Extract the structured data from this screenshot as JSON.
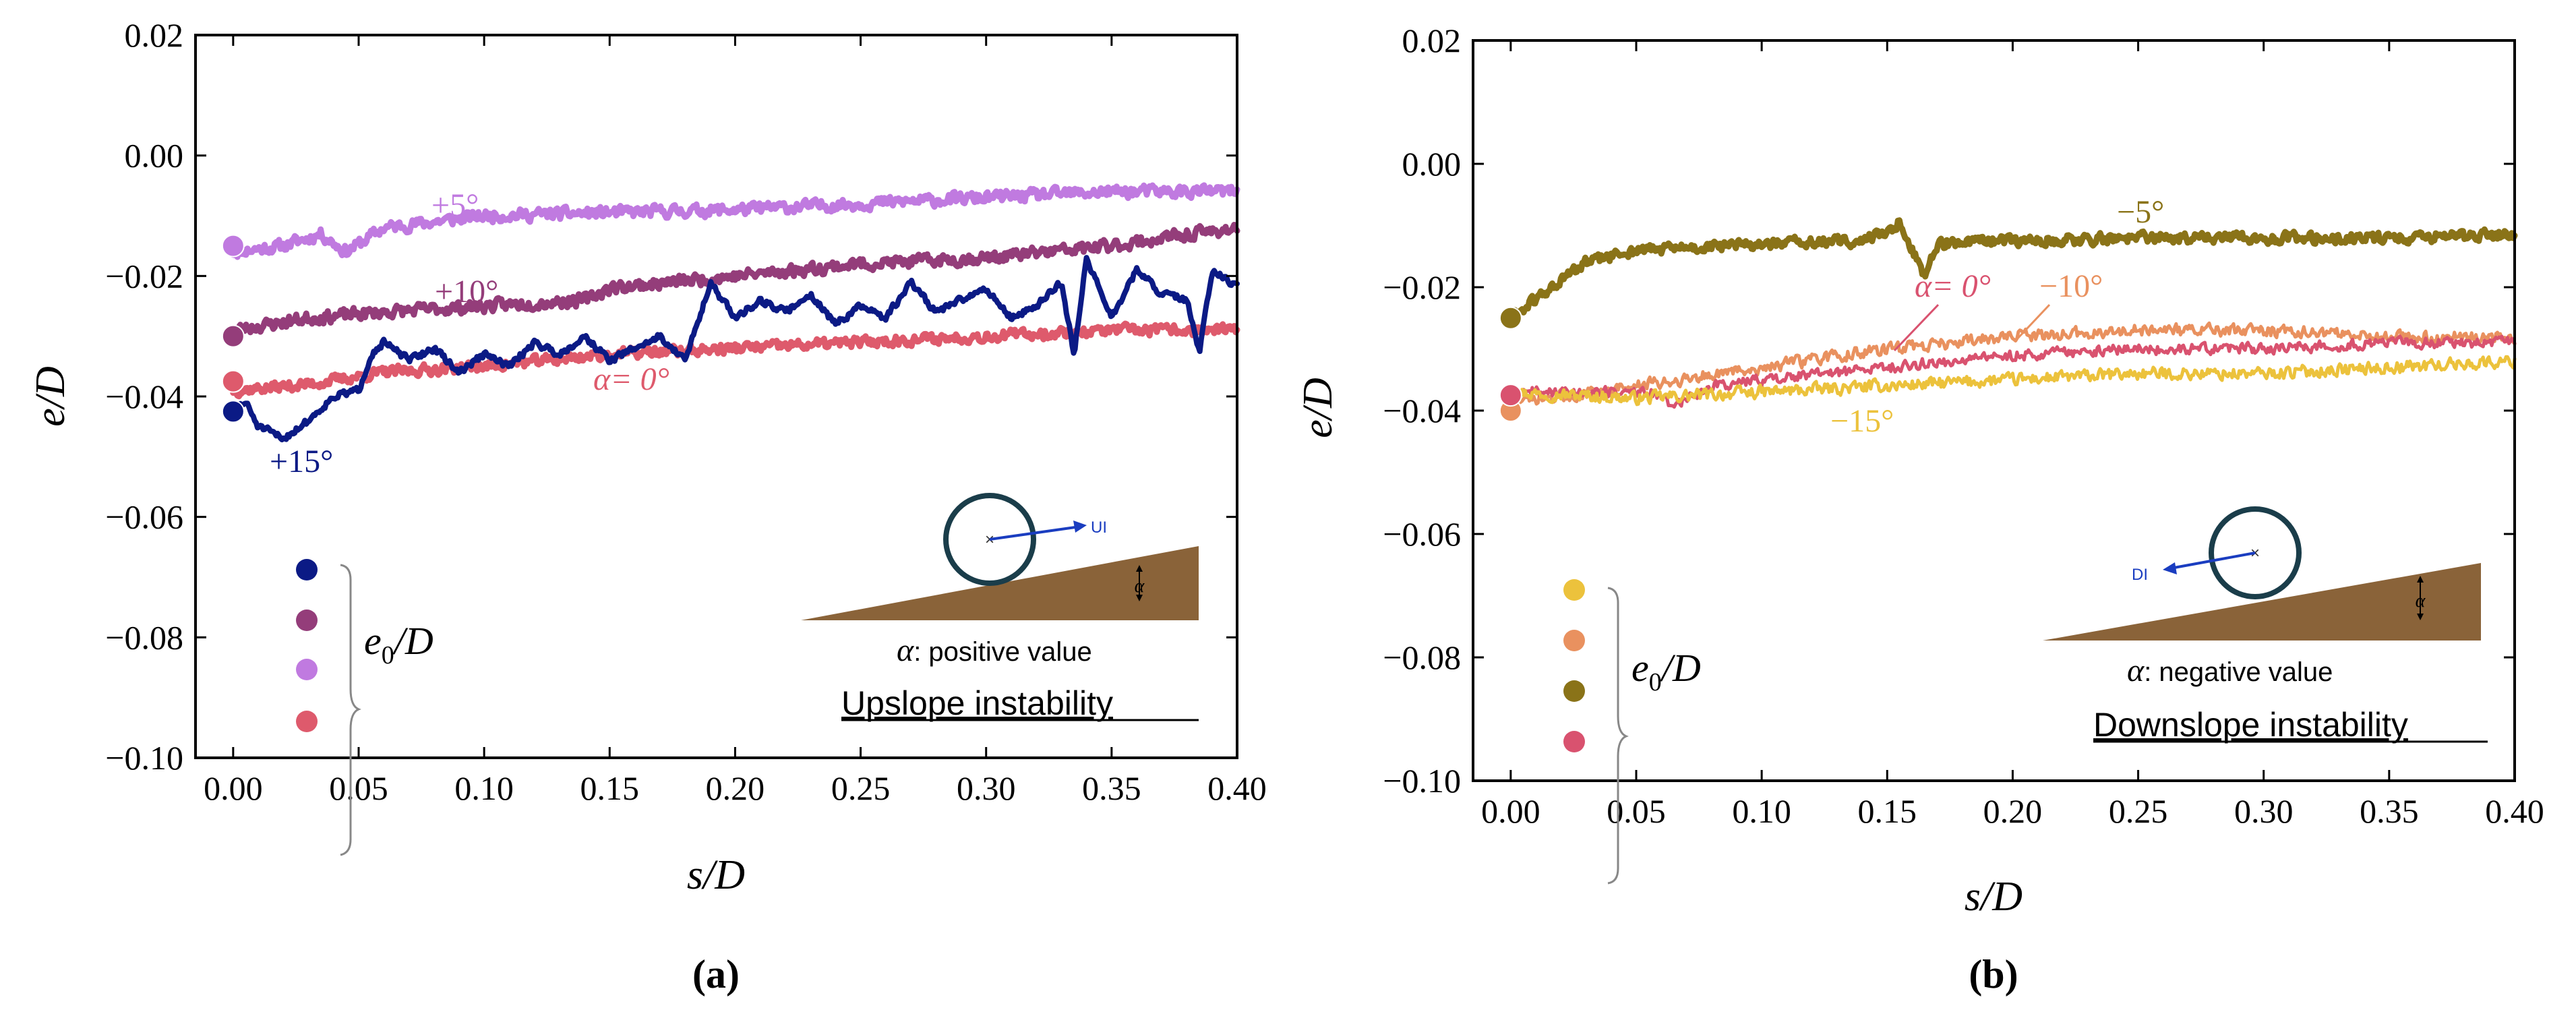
{
  "chart_data": [
    {
      "type": "line",
      "panel_label": "(a)",
      "xlabel": "s/D",
      "ylabel": "e/D",
      "xlim": [
        -0.015,
        0.4
      ],
      "ylim": [
        -0.1,
        0.02
      ],
      "xticks": [
        0.0,
        0.05,
        0.1,
        0.15,
        0.2,
        0.25,
        0.3,
        0.35,
        0.4
      ],
      "xtick_labels": [
        "0.00",
        "0.05",
        "0.10",
        "0.15",
        "0.20",
        "0.25",
        "0.30",
        "0.35",
        "0.40"
      ],
      "yticks": [
        0.02,
        0.0,
        -0.02,
        -0.04,
        -0.06,
        -0.08,
        -0.1
      ],
      "ytick_labels": [
        "0.02",
        "0.00",
        "−0.02",
        "−0.04",
        "−0.06",
        "−0.08",
        "−0.10"
      ],
      "series": [
        {
          "name": "+5°",
          "label": "+5°",
          "color": "#c07ae0",
          "width": 9,
          "noise": 0.0009,
          "seed": 11,
          "x": [
            0,
            0.02,
            0.035,
            0.045,
            0.06,
            0.08,
            0.1,
            0.15,
            0.2,
            0.25,
            0.3,
            0.35,
            0.4
          ],
          "y": [
            -0.016,
            -0.015,
            -0.013,
            -0.016,
            -0.012,
            -0.011,
            -0.01,
            -0.0095,
            -0.009,
            -0.008,
            -0.007,
            -0.006,
            -0.006
          ]
        },
        {
          "name": "+10°",
          "label": "+10°",
          "color": "#943d7a",
          "width": 9,
          "noise": 0.0009,
          "seed": 23,
          "x": [
            0,
            0.03,
            0.06,
            0.1,
            0.14,
            0.15,
            0.2,
            0.25,
            0.3,
            0.35,
            0.4
          ],
          "y": [
            -0.029,
            -0.027,
            -0.026,
            -0.025,
            -0.024,
            -0.022,
            -0.02,
            -0.018,
            -0.017,
            -0.015,
            -0.012
          ]
        },
        {
          "name": "α = 0°",
          "label": "α= 0°",
          "color": "#de5a6c",
          "width": 9,
          "noise": 0.0008,
          "seed": 37,
          "x": [
            0,
            0.03,
            0.06,
            0.1,
            0.15,
            0.2,
            0.25,
            0.3,
            0.35,
            0.4
          ],
          "y": [
            -0.039,
            -0.038,
            -0.036,
            -0.035,
            -0.033,
            -0.032,
            -0.031,
            -0.03,
            -0.029,
            -0.029
          ]
        },
        {
          "name": "+15°",
          "label": "+15°",
          "color": "#0b1a85",
          "width": 8,
          "noise": 0.0005,
          "seed": 51,
          "x": [
            0,
            0.005,
            0.01,
            0.015,
            0.02,
            0.03,
            0.04,
            0.05,
            0.055,
            0.06,
            0.07,
            0.08,
            0.09,
            0.1,
            0.11,
            0.12,
            0.13,
            0.14,
            0.15,
            0.16,
            0.17,
            0.18,
            0.185,
            0.19,
            0.2,
            0.21,
            0.22,
            0.23,
            0.24,
            0.25,
            0.26,
            0.27,
            0.28,
            0.29,
            0.3,
            0.31,
            0.32,
            0.33,
            0.335,
            0.34,
            0.35,
            0.36,
            0.37,
            0.38,
            0.385,
            0.39,
            0.4
          ],
          "y": [
            -0.042,
            -0.041,
            -0.045,
            -0.046,
            -0.047,
            -0.044,
            -0.04,
            -0.039,
            -0.033,
            -0.031,
            -0.034,
            -0.032,
            -0.036,
            -0.033,
            -0.035,
            -0.031,
            -0.033,
            -0.03,
            -0.034,
            -0.032,
            -0.03,
            -0.034,
            -0.028,
            -0.021,
            -0.027,
            -0.024,
            -0.026,
            -0.023,
            -0.028,
            -0.025,
            -0.027,
            -0.021,
            -0.026,
            -0.024,
            -0.022,
            -0.027,
            -0.025,
            -0.021,
            -0.033,
            -0.017,
            -0.027,
            -0.019,
            -0.023,
            -0.024,
            -0.033,
            -0.019,
            -0.022
          ]
        }
      ],
      "start_markers": [
        {
          "color": "#0b1a85",
          "value": -0.0425
        },
        {
          "color": "#943d7a",
          "value": -0.03
        },
        {
          "color": "#c07ae0",
          "value": -0.015
        },
        {
          "color": "#de5a6c",
          "value": -0.0375
        }
      ],
      "legend": {
        "label_main": "e",
        "label_sub": "0",
        "label_tail": "/D",
        "colors": [
          "#0b1a85",
          "#943d7a",
          "#c07ae0",
          "#de5a6c"
        ]
      },
      "inset": {
        "arrow_label": "UI",
        "angle_symbol": "α",
        "caption_symbol": "α",
        "caption": ": positive value",
        "title": "Upslope instability"
      }
    },
    {
      "type": "line",
      "panel_label": "(b)",
      "xlabel": "s/D",
      "ylabel": "e/D",
      "xlim": [
        -0.015,
        0.4
      ],
      "ylim": [
        -0.1,
        0.02
      ],
      "xticks": [
        0.0,
        0.05,
        0.1,
        0.15,
        0.2,
        0.25,
        0.3,
        0.35,
        0.4
      ],
      "xtick_labels": [
        "0.00",
        "0.05",
        "0.10",
        "0.15",
        "0.20",
        "0.25",
        "0.30",
        "0.35",
        "0.40"
      ],
      "yticks": [
        0.02,
        0.0,
        -0.02,
        -0.04,
        -0.06,
        -0.08,
        -0.1
      ],
      "ytick_labels": [
        "0.02",
        "0.00",
        "−0.02",
        "−0.04",
        "−0.06",
        "−0.08",
        "−0.10"
      ],
      "series": [
        {
          "name": "−5°",
          "label": "−5°",
          "color": "#8a7318",
          "width": 9,
          "noise": 0.0008,
          "seed": 61,
          "x": [
            0,
            0.01,
            0.02,
            0.03,
            0.05,
            0.08,
            0.1,
            0.14,
            0.15,
            0.155,
            0.16,
            0.165,
            0.17,
            0.2,
            0.25,
            0.3,
            0.35,
            0.4
          ],
          "y": [
            -0.025,
            -0.022,
            -0.019,
            -0.016,
            -0.014,
            -0.0135,
            -0.013,
            -0.0125,
            -0.011,
            -0.0095,
            -0.014,
            -0.018,
            -0.013,
            -0.0125,
            -0.012,
            -0.012,
            -0.012,
            -0.0115
          ]
        },
        {
          "name": "−10°",
          "label": "−10°",
          "color": "#e9915f",
          "width": 5,
          "noise": 0.0009,
          "seed": 73,
          "x": [
            0,
            0.05,
            0.1,
            0.15,
            0.2,
            0.25,
            0.3,
            0.35,
            0.4
          ],
          "y": [
            -0.039,
            -0.036,
            -0.033,
            -0.03,
            -0.028,
            -0.027,
            -0.027,
            -0.028,
            -0.028
          ]
        },
        {
          "name": "α = 0°",
          "label": "α= 0°",
          "color": "#d9526f",
          "width": 5,
          "noise": 0.0008,
          "seed": 89,
          "x": [
            0,
            0.03,
            0.055,
            0.065,
            0.08,
            0.1,
            0.15,
            0.2,
            0.25,
            0.3,
            0.35,
            0.4
          ],
          "y": [
            -0.037,
            -0.037,
            -0.037,
            -0.039,
            -0.036,
            -0.035,
            -0.033,
            -0.031,
            -0.03,
            -0.03,
            -0.029,
            -0.029
          ]
        },
        {
          "name": "−15°",
          "label": "−15°",
          "color": "#ecc23c",
          "width": 5,
          "noise": 0.0009,
          "seed": 97,
          "x": [
            0,
            0.05,
            0.1,
            0.15,
            0.2,
            0.25,
            0.3,
            0.35,
            0.4
          ],
          "y": [
            -0.037,
            -0.038,
            -0.037,
            -0.036,
            -0.035,
            -0.034,
            -0.034,
            -0.033,
            -0.032
          ]
        }
      ],
      "start_markers": [
        {
          "color": "#ecc23c",
          "value": -0.0375
        },
        {
          "color": "#e9915f",
          "value": -0.04
        },
        {
          "color": "#8a7318",
          "value": -0.025
        },
        {
          "color": "#d9526f",
          "value": -0.0375
        }
      ],
      "legend": {
        "label_main": "e",
        "label_sub": "0",
        "label_tail": "/D",
        "colors": [
          "#ecc23c",
          "#e9915f",
          "#8a7318",
          "#d9526f"
        ]
      },
      "inset": {
        "arrow_label": "DI",
        "angle_symbol": "α",
        "caption_symbol": "α",
        "caption": ": negative value",
        "title": "Downslope instability"
      }
    }
  ]
}
